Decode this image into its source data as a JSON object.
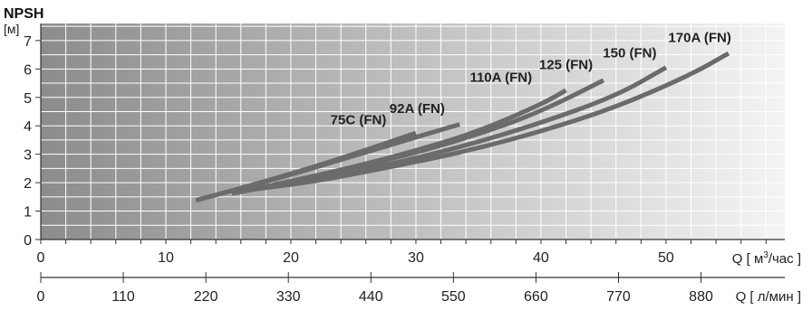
{
  "chart_data": {
    "type": "line",
    "title": "NPSH",
    "ylabel": "[м]",
    "ylim": [
      0,
      7.6
    ],
    "yticks": [
      0,
      1,
      2,
      3,
      4,
      5,
      6,
      7
    ],
    "grid": true,
    "x_axes": [
      {
        "id": "m3h",
        "label": "Q [ м³/час ]",
        "label_parts": {
          "prefix": "Q [ м",
          "sup": "3",
          "suffix": "/час ]"
        },
        "lim": [
          0,
          59.5
        ],
        "ticks": [
          0,
          10,
          20,
          30,
          40,
          50
        ],
        "minor_step": 2
      },
      {
        "id": "lmin",
        "label": "Q [ л/мин ]",
        "lim": [
          0,
          991.7
        ],
        "ticks": [
          0,
          110,
          220,
          330,
          440,
          550,
          660,
          770,
          880
        ]
      }
    ],
    "series": [
      {
        "name": "75C (FN)",
        "x": [
          12.4,
          18,
          24,
          30
        ],
        "y": [
          1.38,
          2.05,
          2.85,
          3.75
        ]
      },
      {
        "name": "92A (FN)",
        "x": [
          12.4,
          18,
          24,
          30,
          33.5
        ],
        "y": [
          1.38,
          2.03,
          2.8,
          3.6,
          4.05
        ]
      },
      {
        "name": "110A (FN)",
        "x": [
          15.3,
          20,
          25,
          30,
          35,
          40,
          42
        ],
        "y": [
          1.62,
          2.05,
          2.55,
          3.12,
          3.8,
          4.75,
          5.25
        ]
      },
      {
        "name": "125 (FN)",
        "x": [
          15.3,
          20,
          25,
          30,
          35,
          40,
          45
        ],
        "y": [
          1.62,
          2.0,
          2.5,
          3.05,
          3.7,
          4.5,
          5.6
        ]
      },
      {
        "name": "150 (FN)",
        "x": [
          17.3,
          22,
          28,
          34,
          40,
          46,
          50
        ],
        "y": [
          1.78,
          2.1,
          2.65,
          3.3,
          4.1,
          5.05,
          6.05
        ]
      },
      {
        "name": "170A (FN)",
        "x": [
          17.3,
          22,
          28,
          34,
          40,
          46,
          52,
          55
        ],
        "y": [
          1.78,
          2.05,
          2.55,
          3.1,
          3.8,
          4.65,
          5.8,
          6.55
        ]
      }
    ],
    "annotations": [
      {
        "text": "75C (FN)",
        "x": 25.4,
        "y": 4.05
      },
      {
        "text": "92A (FN)",
        "x": 30.1,
        "y": 4.45
      },
      {
        "text": "110A (FN)",
        "x": 36.8,
        "y": 5.55
      },
      {
        "text": "125 (FN)",
        "x": 42.0,
        "y": 6.0
      },
      {
        "text": "150 (FN)",
        "x": 47.1,
        "y": 6.4
      },
      {
        "text": "170A (FN)",
        "x": 52.7,
        "y": 6.95
      }
    ],
    "colors": {
      "curve": "#6b6b6b",
      "grid": "#ffffff",
      "gradient_left": "#8c8c8c",
      "gradient_right": "#f4f4f4",
      "axis": "#333333"
    }
  }
}
